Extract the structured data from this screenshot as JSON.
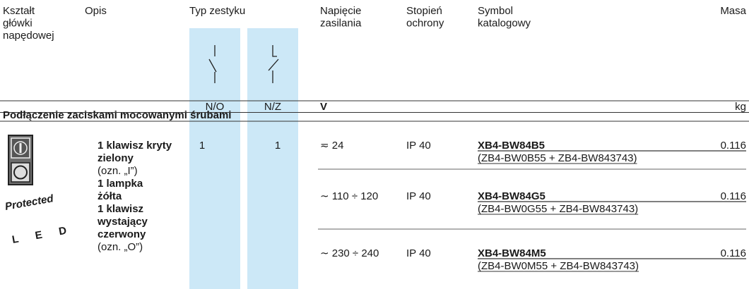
{
  "header": {
    "columns": [
      [
        "Kształt",
        "główki",
        "napędowej"
      ],
      [
        "Opis"
      ],
      [
        "Typ zestyku"
      ],
      [
        "Napięcie",
        "zasilania"
      ],
      [
        "Stopień",
        "ochrony"
      ],
      [
        "Symbol",
        "katalogowy"
      ],
      [
        "Masa"
      ]
    ]
  },
  "units": {
    "no": "N/O",
    "nz": "N/Z",
    "voltage": "V",
    "mass": "kg"
  },
  "section": "Podłączenie zaciskami mocowanymi śrubami",
  "logo": {
    "top": "Protected",
    "main": "LED"
  },
  "description": [
    {
      "text": "1 klawisz kryty",
      "bold": true
    },
    {
      "text": "zielony",
      "bold": true
    },
    {
      "text": "(ozn. „I”)",
      "bold": false
    },
    {
      "text": "1 lampka",
      "bold": true
    },
    {
      "text": "żółta",
      "bold": true
    },
    {
      "text": "1 klawisz",
      "bold": true
    },
    {
      "text": "wystający",
      "bold": true
    },
    {
      "text": "czerwony",
      "bold": true
    },
    {
      "text": "(ozn. „O”)",
      "bold": false
    }
  ],
  "contacts": {
    "no": 1,
    "nz": 1
  },
  "rows": [
    {
      "voltage": "≂ 24",
      "protection": "IP 40",
      "symbol": "XB4-BW84B5",
      "mass": 0.116,
      "components": "(ZB4-BW0B55 + ZB4-BW843743)"
    },
    {
      "voltage": "∼ 110 ÷ 120",
      "protection": "IP 40",
      "symbol": "XB4-BW84G5",
      "mass": 0.116,
      "components": "(ZB4-BW0G55 + ZB4-BW843743)"
    },
    {
      "voltage": "∼ 230 ÷ 240",
      "protection": "IP 40",
      "symbol": "XB4-BW84M5",
      "mass": 0.116,
      "components": "(ZB4-BW0M55 + ZB4-BW843743)"
    }
  ]
}
